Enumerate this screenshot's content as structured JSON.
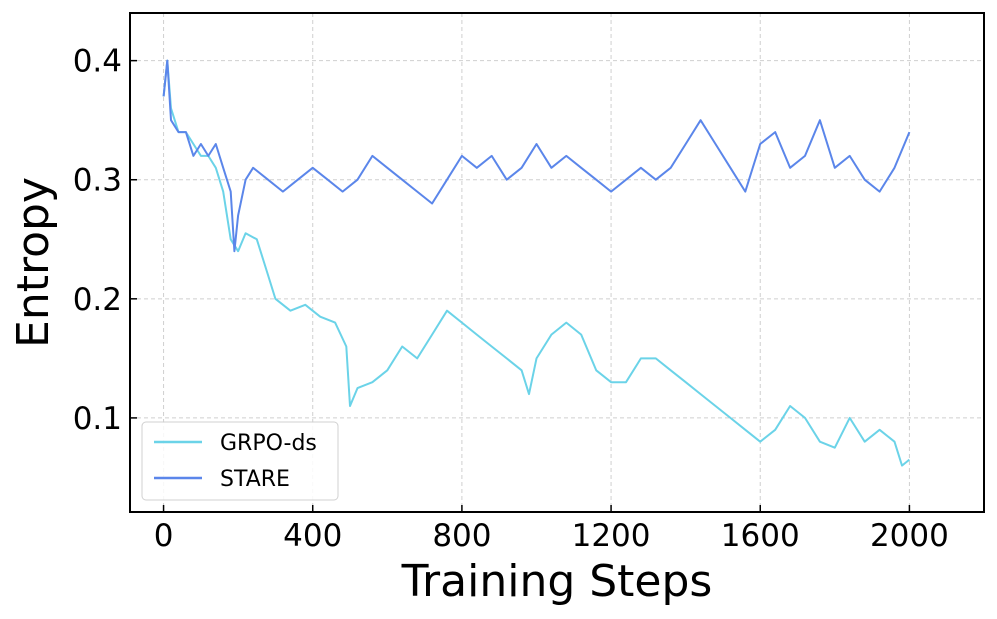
{
  "chart_data": {
    "type": "line",
    "title": "",
    "xlabel": "Training Steps",
    "ylabel": "Entropy",
    "xlim": [
      -90,
      2200
    ],
    "ylim": [
      0.021,
      0.44
    ],
    "xticks": [
      0,
      400,
      800,
      1200,
      1600,
      2000
    ],
    "xtick_labels": [
      "0",
      "400",
      "800",
      "1200",
      "1600",
      "2000"
    ],
    "yticks": [
      0.1,
      0.2,
      0.3,
      0.4
    ],
    "ytick_labels": [
      "0.1",
      "0.2",
      "0.3",
      "0.4"
    ],
    "grid": true,
    "legend_position": "lower-left",
    "series": [
      {
        "name": "GRPO-ds",
        "color": "#6bd3e8",
        "x": [
          0,
          10,
          20,
          40,
          60,
          80,
          100,
          120,
          140,
          160,
          180,
          200,
          220,
          250,
          280,
          300,
          340,
          380,
          420,
          460,
          490,
          500,
          520,
          560,
          600,
          640,
          680,
          720,
          760,
          800,
          840,
          880,
          920,
          960,
          980,
          1000,
          1040,
          1080,
          1120,
          1160,
          1200,
          1240,
          1280,
          1320,
          1360,
          1400,
          1440,
          1480,
          1520,
          1560,
          1600,
          1640,
          1680,
          1720,
          1760,
          1800,
          1840,
          1880,
          1920,
          1960,
          1980,
          2000
        ],
        "values": [
          0.37,
          0.4,
          0.36,
          0.34,
          0.34,
          0.33,
          0.32,
          0.32,
          0.31,
          0.29,
          0.25,
          0.24,
          0.255,
          0.25,
          0.22,
          0.2,
          0.19,
          0.195,
          0.185,
          0.18,
          0.16,
          0.11,
          0.125,
          0.13,
          0.14,
          0.16,
          0.15,
          0.17,
          0.19,
          0.18,
          0.17,
          0.16,
          0.15,
          0.14,
          0.12,
          0.15,
          0.17,
          0.18,
          0.17,
          0.14,
          0.13,
          0.13,
          0.15,
          0.15,
          0.14,
          0.13,
          0.12,
          0.11,
          0.1,
          0.09,
          0.08,
          0.09,
          0.11,
          0.1,
          0.08,
          0.075,
          0.1,
          0.08,
          0.09,
          0.08,
          0.06,
          0.065
        ]
      },
      {
        "name": "STARE",
        "color": "#5b86ea",
        "x": [
          0,
          10,
          20,
          40,
          60,
          80,
          100,
          120,
          140,
          160,
          180,
          190,
          200,
          220,
          240,
          280,
          320,
          360,
          400,
          440,
          480,
          520,
          560,
          600,
          640,
          680,
          720,
          760,
          800,
          840,
          880,
          920,
          960,
          1000,
          1040,
          1080,
          1120,
          1160,
          1200,
          1240,
          1280,
          1320,
          1360,
          1400,
          1440,
          1480,
          1520,
          1560,
          1600,
          1640,
          1680,
          1720,
          1760,
          1800,
          1840,
          1880,
          1920,
          1960,
          2000
        ],
        "values": [
          0.37,
          0.4,
          0.35,
          0.34,
          0.34,
          0.32,
          0.33,
          0.32,
          0.33,
          0.31,
          0.29,
          0.24,
          0.27,
          0.3,
          0.31,
          0.3,
          0.29,
          0.3,
          0.31,
          0.3,
          0.29,
          0.3,
          0.32,
          0.31,
          0.3,
          0.29,
          0.28,
          0.3,
          0.32,
          0.31,
          0.32,
          0.3,
          0.31,
          0.33,
          0.31,
          0.32,
          0.31,
          0.3,
          0.29,
          0.3,
          0.31,
          0.3,
          0.31,
          0.33,
          0.35,
          0.33,
          0.31,
          0.29,
          0.33,
          0.34,
          0.31,
          0.32,
          0.35,
          0.31,
          0.32,
          0.3,
          0.29,
          0.31,
          0.34
        ]
      }
    ]
  }
}
